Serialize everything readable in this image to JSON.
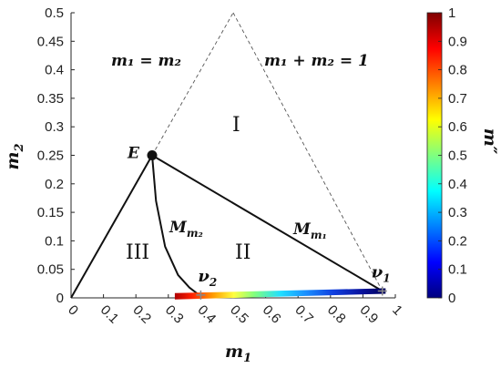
{
  "chart_data": {
    "type": "line",
    "xlabel": "m",
    "xlabel_sub": "1",
    "ylabel": "m",
    "ylabel_sub": "2",
    "xlim": [
      0,
      1
    ],
    "ylim": [
      0,
      0.5
    ],
    "x_ticks": [
      "0",
      "0.1",
      "0.2",
      "0.3",
      "0.4",
      "0.5",
      "0.6",
      "0.7",
      "0.8",
      "0.9",
      "1"
    ],
    "y_ticks": [
      "0",
      "0.05",
      "0.1",
      "0.15",
      "0.2",
      "0.25",
      "0.3",
      "0.35",
      "0.4",
      "0.45",
      "0.5"
    ],
    "colorbar": {
      "label": "m″",
      "range": [
        0,
        1
      ],
      "ticks": [
        "0",
        "0.1",
        "0.2",
        "0.3",
        "0.4",
        "0.5",
        "0.6",
        "0.7",
        "0.8",
        "0.9",
        "1"
      ],
      "colormap": "jet"
    },
    "boundary_dashed": [
      [
        0.5,
        0.5
      ],
      [
        0.96,
        0.012
      ]
    ],
    "lines": {
      "E_origin": [
        [
          0,
          0
        ],
        [
          0.25,
          0.25
        ]
      ],
      "M_m1": [
        [
          0.25,
          0.25
        ],
        [
          0.96,
          0.012
        ]
      ],
      "M_m2": [
        [
          0.25,
          0.25
        ],
        [
          0.262,
          0.17
        ],
        [
          0.29,
          0.09
        ],
        [
          0.33,
          0.04
        ],
        [
          0.365,
          0.018
        ],
        [
          0.395,
          0.005
        ]
      ]
    },
    "color_band": {
      "x_start": 0.32,
      "x_end": 0.97,
      "y_start": 0.002,
      "y_end": 0.012
    },
    "points": {
      "E": {
        "label": "E",
        "x": 0.25,
        "y": 0.25
      },
      "nu1": {
        "label": "ν",
        "sub": "1",
        "x": 0.96,
        "y": 0.012
      },
      "nu2": {
        "label": "ν",
        "sub": "2",
        "x": 0.4,
        "y": 0.005
      }
    },
    "annotations": {
      "eq1": "m₁ = m₂",
      "eq2": "m₁ + m₂ = 1",
      "curve_M_m1": "M",
      "curve_M_m1_sub": "m₁",
      "curve_M_m2": "M",
      "curve_M_m2_sub": "m₂",
      "region_I": "I",
      "region_II": "II",
      "region_III": "III"
    },
    "grid": false
  }
}
